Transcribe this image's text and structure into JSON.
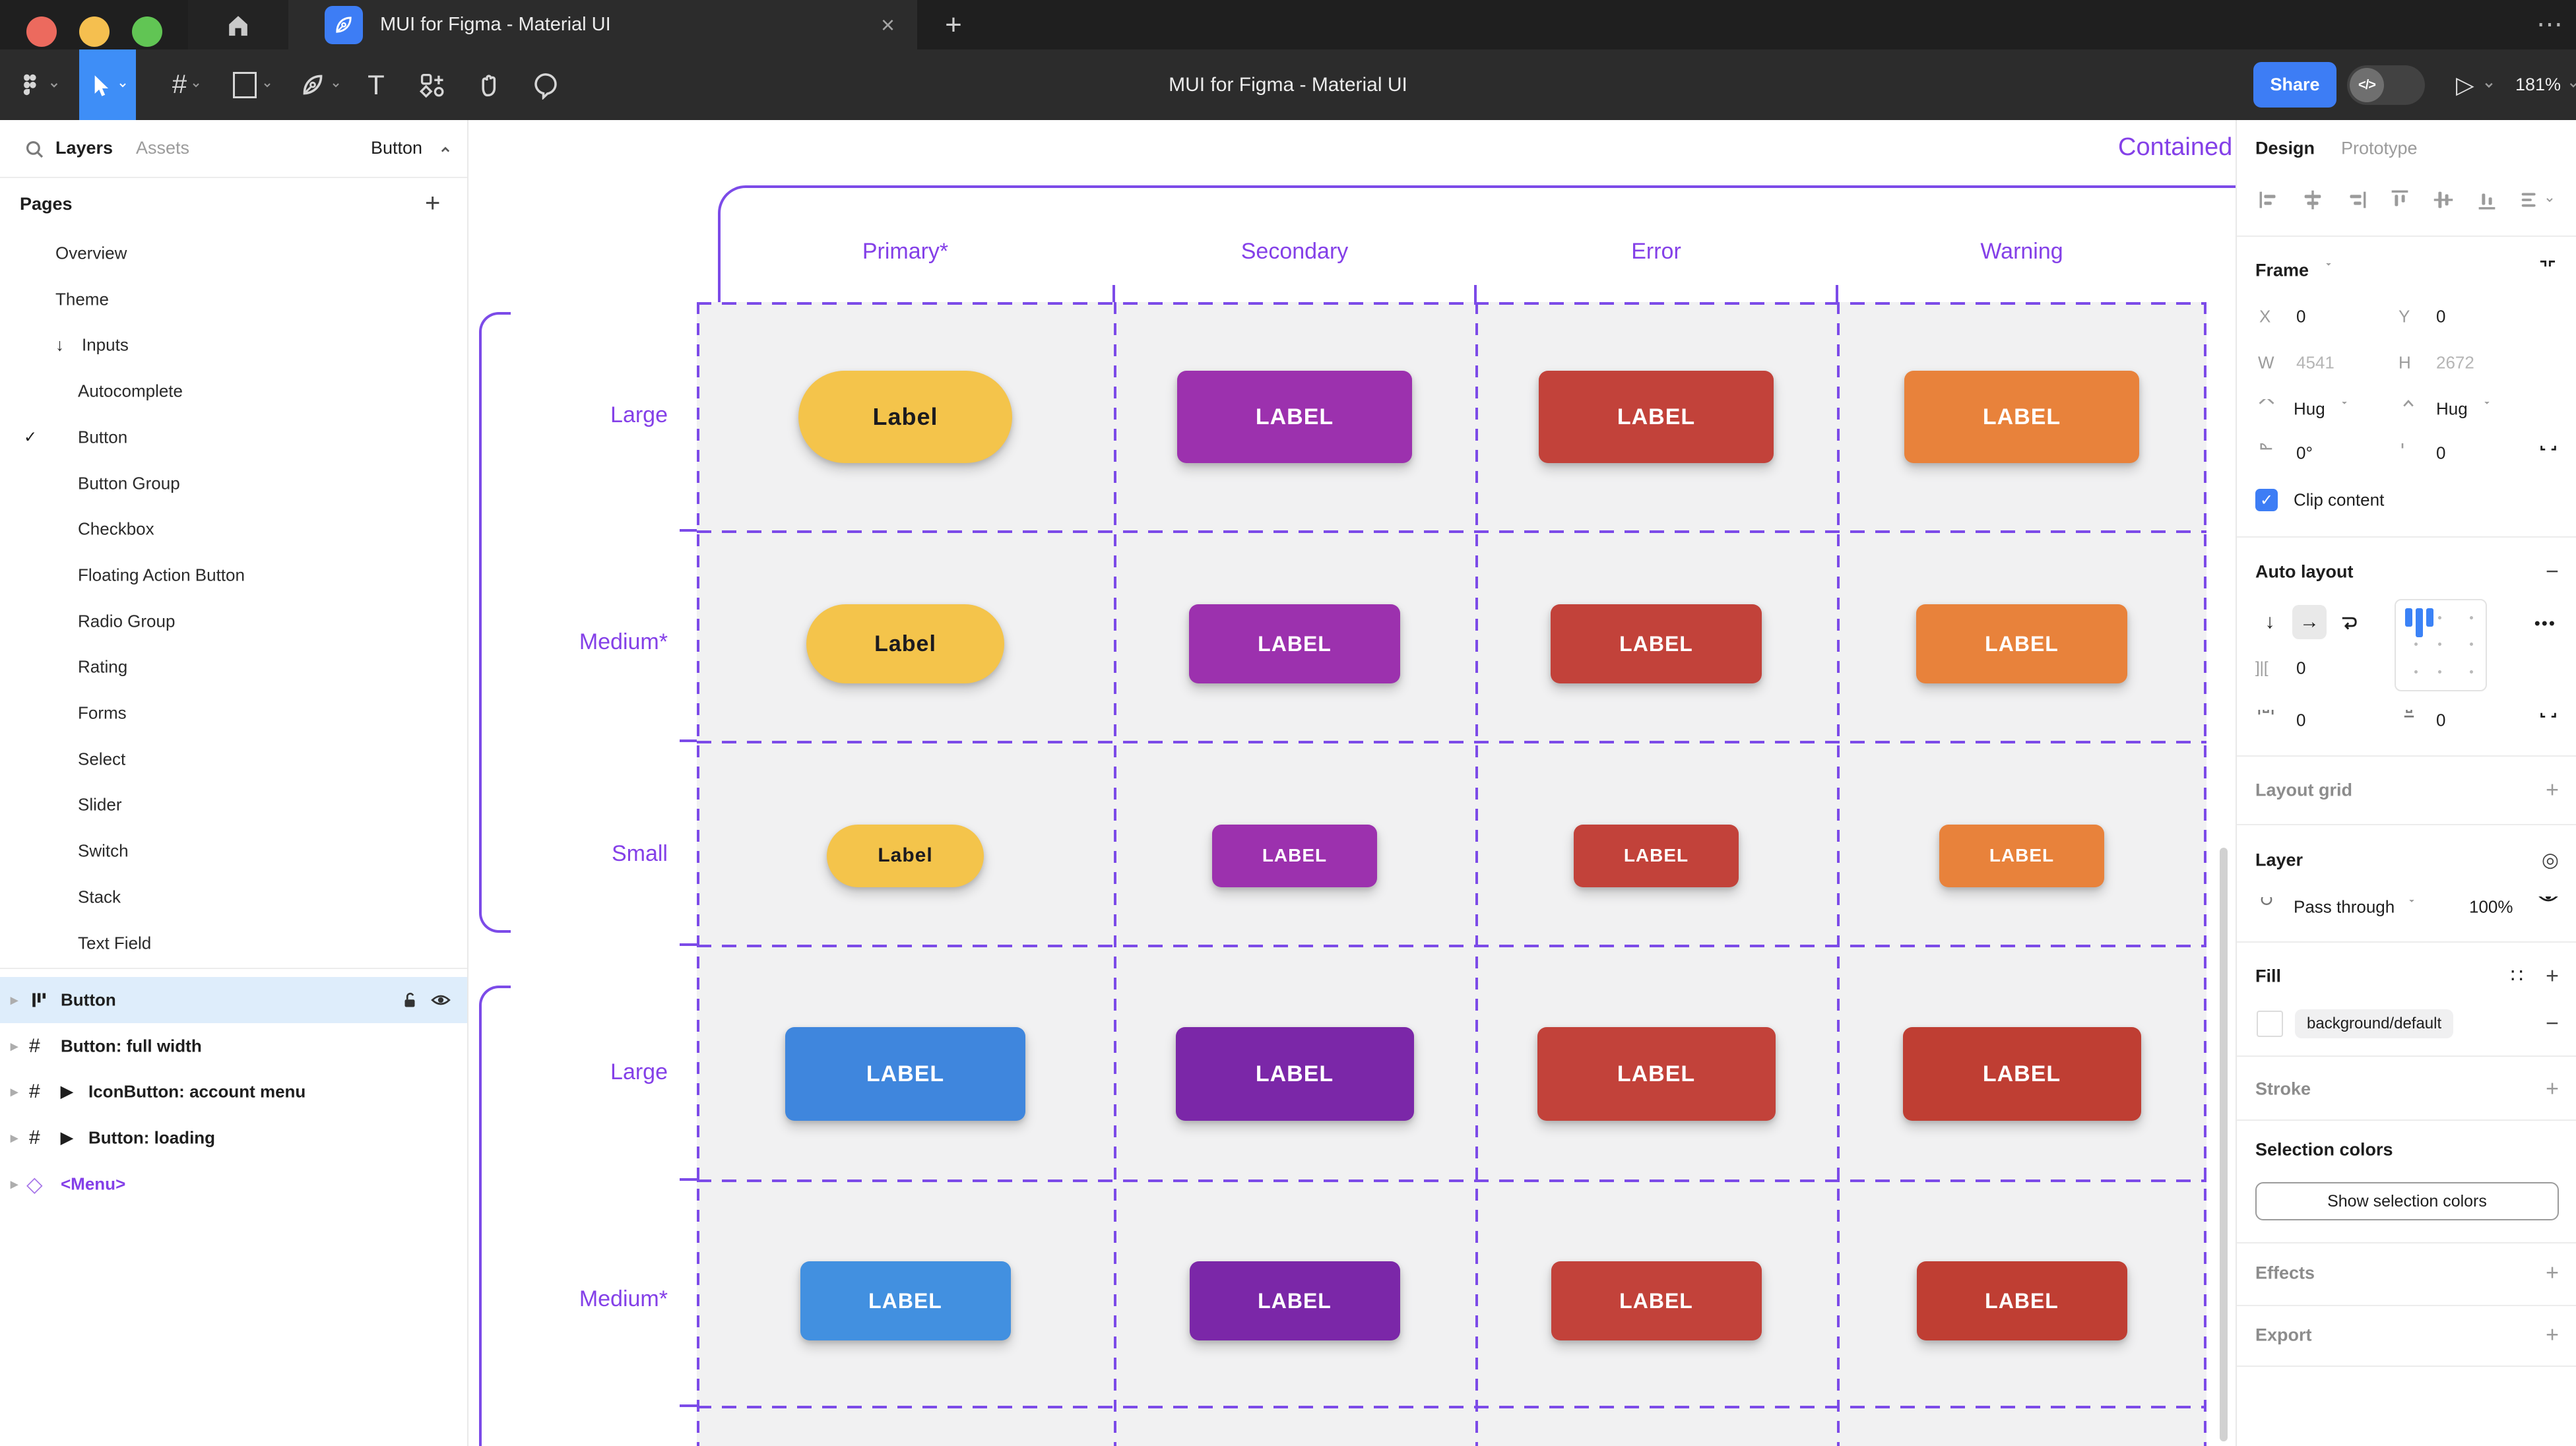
{
  "colors": {
    "figma_blue": "#3d7df5",
    "tool_selected_blue": "#3e8ef7",
    "frame_purple": "#7c4be8",
    "label_purple": "#8440e8",
    "selected_row_blue": "#deedfb",
    "cell_gray": "#f1f1f2",
    "traffic_red": "#ec6a5e",
    "traffic_yellow": "#f5bf4f",
    "traffic_green": "#61c554"
  },
  "window": {
    "tab_title": "MUI for Figma - Material UI",
    "close_glyph": "×",
    "new_tab_glyph": "+",
    "more_glyph": "⋯",
    "home_glyph": "⌂"
  },
  "toolbar": {
    "title": "MUI for Figma - Material UI",
    "share_label": "Share",
    "dev_toggle_glyph": "</>",
    "play_glyph": "▷",
    "zoom_level": "181%",
    "frame_tool_glyph": "#",
    "text_tool_glyph": "T"
  },
  "sidebar": {
    "tab_layers": "Layers",
    "tab_assets": "Assets",
    "selector_label": "Button",
    "pages_header": "Pages",
    "pages": [
      {
        "label": "Overview",
        "indent": 1
      },
      {
        "label": "Theme",
        "indent": 1
      },
      {
        "label": "Inputs",
        "indent": 1,
        "arrow": "↓"
      },
      {
        "label": "Autocomplete",
        "indent": 2
      },
      {
        "label": "Button",
        "indent": 2,
        "check": "✓"
      },
      {
        "label": "Button Group",
        "indent": 2
      },
      {
        "label": "Checkbox",
        "indent": 2
      },
      {
        "label": "Floating Action Button",
        "indent": 2
      },
      {
        "label": "Radio Group",
        "indent": 2
      },
      {
        "label": "Rating",
        "indent": 2
      },
      {
        "label": "Forms",
        "indent": 2
      },
      {
        "label": "Select",
        "indent": 2
      },
      {
        "label": "Slider",
        "indent": 2
      },
      {
        "label": "Switch",
        "indent": 2
      },
      {
        "label": "Stack",
        "indent": 2
      },
      {
        "label": "Text Field",
        "indent": 2
      }
    ],
    "layers": [
      {
        "label": "Button",
        "icon": "auto-layout",
        "selected": true
      },
      {
        "label": "Button: full width",
        "icon": "frame"
      },
      {
        "label": "IconButton: account menu",
        "icon": "frame",
        "play": true
      },
      {
        "label": "Button: loading",
        "icon": "frame",
        "play": true
      },
      {
        "label": "<Menu>",
        "icon": "component",
        "component": true
      }
    ]
  },
  "canvas": {
    "frame_label": "Contained",
    "columns": [
      "Primary*",
      "Secondary",
      "Error",
      "Warning"
    ],
    "rows": [
      {
        "label": "Large",
        "buttons": [
          {
            "label": "Label",
            "bg": "#f4c44b",
            "fg": "#1c1b1f",
            "pill": true
          },
          {
            "label": "LABEL",
            "bg": "#9c31ae",
            "fg": "#ffffff"
          },
          {
            "label": "LABEL",
            "bg": "#c2423a",
            "fg": "#ffffff"
          },
          {
            "label": "LABEL",
            "bg": "#e8823b",
            "fg": "#ffffff"
          }
        ]
      },
      {
        "label": "Medium*",
        "buttons": [
          {
            "label": "Label",
            "bg": "#f4c44b",
            "fg": "#1c1b1f",
            "pill": true
          },
          {
            "label": "LABEL",
            "bg": "#9c31ae",
            "fg": "#ffffff"
          },
          {
            "label": "LABEL",
            "bg": "#c2423a",
            "fg": "#ffffff"
          },
          {
            "label": "LABEL",
            "bg": "#e8823b",
            "fg": "#ffffff"
          }
        ]
      },
      {
        "label": "Small",
        "buttons": [
          {
            "label": "Label",
            "bg": "#f4c44b",
            "fg": "#1c1b1f",
            "pill": true
          },
          {
            "label": "LABEL",
            "bg": "#9c31ae",
            "fg": "#ffffff"
          },
          {
            "label": "LABEL",
            "bg": "#c2423a",
            "fg": "#ffffff"
          },
          {
            "label": "LABEL",
            "bg": "#e8823b",
            "fg": "#ffffff"
          }
        ]
      },
      {
        "label": "Large",
        "buttons": [
          {
            "label": "LABEL",
            "bg": "#3f86dd",
            "fg": "#ffffff"
          },
          {
            "label": "LABEL",
            "bg": "#7b27a8",
            "fg": "#ffffff"
          },
          {
            "label": "LABEL",
            "bg": "#c2423a",
            "fg": "#ffffff"
          },
          {
            "label": "LABEL",
            "bg": "#bf3e33",
            "fg": "#ffffff"
          }
        ]
      },
      {
        "label": "Medium*",
        "buttons": [
          {
            "label": "LABEL",
            "bg": "#4290e0",
            "fg": "#ffffff"
          },
          {
            "label": "LABEL",
            "bg": "#7b27a8",
            "fg": "#ffffff"
          },
          {
            "label": "LABEL",
            "bg": "#c2423a",
            "fg": "#ffffff"
          },
          {
            "label": "LABEL",
            "bg": "#bf3e33",
            "fg": "#ffffff"
          }
        ]
      }
    ]
  },
  "inspector": {
    "tab_design": "Design",
    "tab_prototype": "Prototype",
    "frame": {
      "title": "Frame",
      "x_label": "X",
      "x": "0",
      "y_label": "Y",
      "y": "0",
      "w_label": "W",
      "w": "4541",
      "h_label": "H",
      "h": "2672",
      "h_sizing": "Hug",
      "v_sizing": "Hug",
      "rotation": "0°",
      "radius": "0",
      "clip_label": "Clip content"
    },
    "auto_layout": {
      "title": "Auto layout",
      "down_glyph": "↓",
      "right_glyph": "→",
      "gap_icon_glyph": "]|[",
      "gap": "0",
      "pad_h": "0",
      "pad_v": "0",
      "more_glyph": "•••",
      "minus_glyph": "−"
    },
    "layout_grid": {
      "title": "Layout grid",
      "add_glyph": "+"
    },
    "layer": {
      "title": "Layer",
      "blend_mode": "Pass through",
      "opacity": "100%",
      "blend_icon_glyph": "◎"
    },
    "fill": {
      "title": "Fill",
      "token": "background/default",
      "styles_glyph": "∷",
      "add_glyph": "+",
      "remove_glyph": "−"
    },
    "stroke": {
      "title": "Stroke",
      "add_glyph": "+"
    },
    "selection_colors": {
      "title": "Selection colors",
      "button_label": "Show selection colors"
    },
    "effects": {
      "title": "Effects",
      "add_glyph": "+"
    },
    "export": {
      "title": "Export",
      "add_glyph": "+"
    }
  }
}
